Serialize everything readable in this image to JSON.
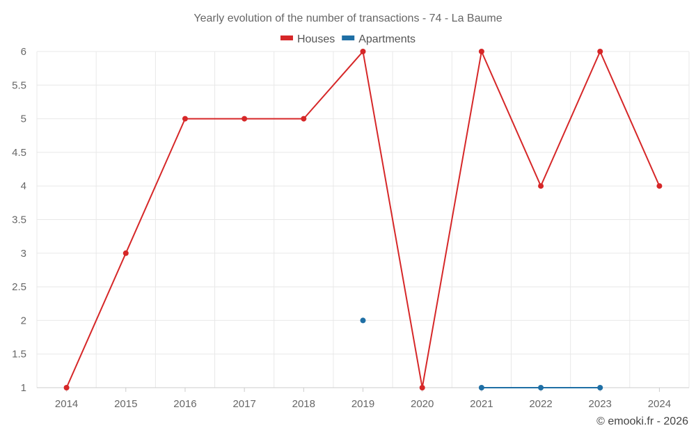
{
  "chart_data": {
    "type": "line",
    "title": "Yearly evolution of the number of transactions - 74 - La Baume",
    "xlabel": "",
    "ylabel": "",
    "categories": [
      "2014",
      "2015",
      "2016",
      "2017",
      "2018",
      "2019",
      "2020",
      "2021",
      "2022",
      "2023",
      "2024"
    ],
    "ylim": [
      1,
      6
    ],
    "yticks": [
      "1",
      "1.5",
      "2",
      "2.5",
      "3",
      "3.5",
      "4",
      "4.5",
      "5",
      "5.5",
      "6"
    ],
    "grid": true,
    "legend_position": "top-center",
    "series": [
      {
        "name": "Houses",
        "color": "#d62728",
        "values": [
          1,
          3,
          5,
          5,
          5,
          6,
          1,
          6,
          4,
          6,
          4
        ]
      },
      {
        "name": "Apartments",
        "color": "#1f6fa5",
        "values": [
          null,
          null,
          null,
          null,
          null,
          2,
          null,
          1,
          1,
          1,
          null
        ]
      }
    ]
  },
  "credit": "© emooki.fr - 2026"
}
